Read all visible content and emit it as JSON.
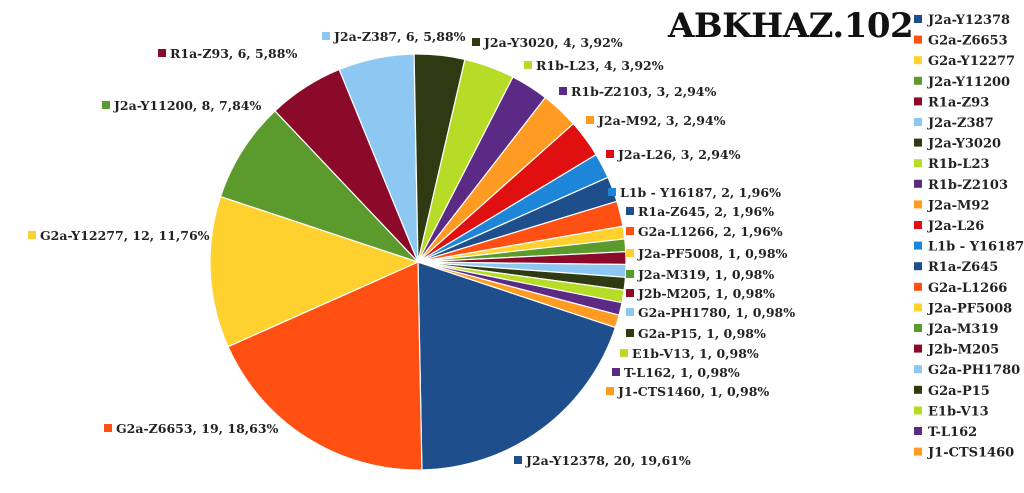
{
  "chart_data": {
    "type": "pie",
    "title": "ABKHAZ.102",
    "legend_position": "right",
    "slices": [
      {
        "name": "J2a-Y12378",
        "count": 20,
        "pct": "19,61%",
        "color": "#1f4e8c"
      },
      {
        "name": "G2a-Z6653",
        "count": 19,
        "pct": "18,63%",
        "color": "#ff4f12"
      },
      {
        "name": "G2a-Y12277",
        "count": 12,
        "pct": "11,76%",
        "color": "#ffd12e"
      },
      {
        "name": "J2a-Y11200",
        "count": 8,
        "pct": "7,84%",
        "color": "#5b9a2c"
      },
      {
        "name": "R1a-Z93",
        "count": 6,
        "pct": "5,88%",
        "color": "#8b0a2a"
      },
      {
        "name": "J2a-Z387",
        "count": 6,
        "pct": "5,88%",
        "color": "#8cc8f2"
      },
      {
        "name": "J2a-Y3020",
        "count": 4,
        "pct": "3,92%",
        "color": "#2f3a12"
      },
      {
        "name": "R1b-L23",
        "count": 4,
        "pct": "3,92%",
        "color": "#b6dc27"
      },
      {
        "name": "R1b-Z2103",
        "count": 3,
        "pct": "2,94%",
        "color": "#5a2a84"
      },
      {
        "name": "J2a-M92",
        "count": 3,
        "pct": "2,94%",
        "color": "#ff9b22"
      },
      {
        "name": "J2a-L26",
        "count": 3,
        "pct": "2,94%",
        "color": "#e01010"
      },
      {
        "name": "L1b - Y16187",
        "count": 2,
        "pct": "1,96%",
        "color": "#1d86d8"
      },
      {
        "name": "R1a-Z645",
        "count": 2,
        "pct": "1,96%",
        "color": "#1f4e8c"
      },
      {
        "name": "G2a-L1266",
        "count": 2,
        "pct": "1,96%",
        "color": "#ff4f12"
      },
      {
        "name": "J2a-PF5008",
        "count": 1,
        "pct": "0,98%",
        "color": "#ffd12e"
      },
      {
        "name": "J2a-M319",
        "count": 1,
        "pct": "0,98%",
        "color": "#5b9a2c"
      },
      {
        "name": "J2b-M205",
        "count": 1,
        "pct": "0,98%",
        "color": "#8b0a2a"
      },
      {
        "name": "G2a-PH1780",
        "count": 1,
        "pct": "0,98%",
        "color": "#8cc8f2"
      },
      {
        "name": "G2a-P15",
        "count": 1,
        "pct": "0,98%",
        "color": "#2f3a12"
      },
      {
        "name": "E1b-V13",
        "count": 1,
        "pct": "0,98%",
        "color": "#b6dc27"
      },
      {
        "name": "T-L162",
        "count": 1,
        "pct": "0,98%",
        "color": "#5a2a84"
      },
      {
        "name": "J1-CTS1460",
        "count": 1,
        "pct": "0,98%",
        "color": "#ff9b22"
      }
    ]
  }
}
